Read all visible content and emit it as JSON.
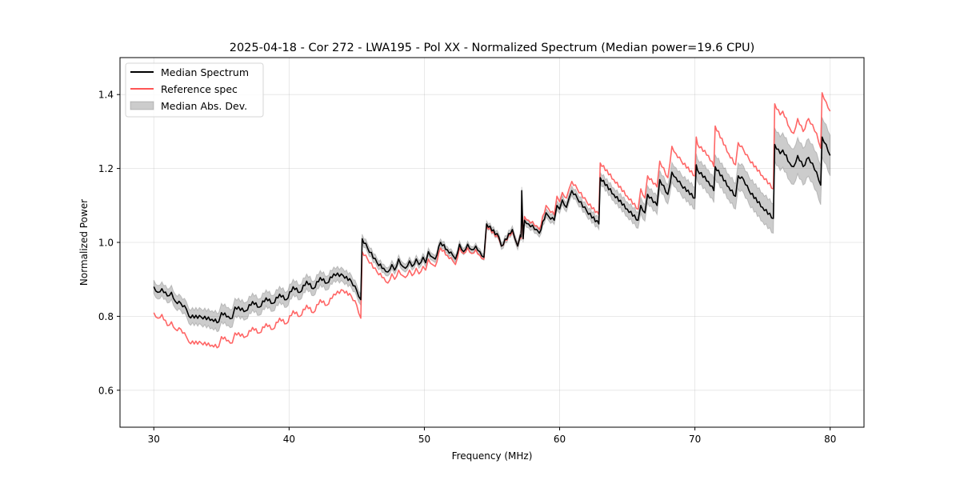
{
  "chart_data": {
    "type": "line",
    "title": "2025-04-18 - Cor 272 - LWA195 - Pol XX - Normalized Spectrum (Median power=19.6 CPU)",
    "xlabel": "Frequency (MHz)",
    "ylabel": "Normalized Power",
    "xlim": [
      27.5,
      82.5
    ],
    "ylim": [
      0.5,
      1.5
    ],
    "xticks": [
      30,
      40,
      50,
      60,
      70,
      80
    ],
    "xtick_labels": [
      "30",
      "40",
      "50",
      "60",
      "70",
      "80"
    ],
    "yticks": [
      0.6,
      0.8,
      1.0,
      1.2,
      1.4
    ],
    "ytick_labels": [
      "0.6",
      "0.8",
      "1.0",
      "1.2",
      "1.4"
    ],
    "grid": true,
    "legend_position": "top-left",
    "legend": [
      {
        "label": "Median Spectrum",
        "kind": "line",
        "color": "#000000"
      },
      {
        "label": "Reference spec",
        "kind": "line",
        "color": "#ff5555"
      },
      {
        "label": "Median Abs. Dev.",
        "kind": "band",
        "color": "#b0b0b0"
      }
    ],
    "series": [
      {
        "name": "Median Spectrum",
        "color": "#000000",
        "x": [
          30.0,
          30.3,
          30.6,
          31.0,
          31.3,
          31.6,
          32.0,
          32.4,
          32.6,
          33.5,
          34.3,
          34.8,
          35.0,
          35.5,
          35.8,
          36.0,
          36.8,
          37.3,
          37.8,
          38.3,
          38.8,
          39.3,
          39.8,
          40.3,
          40.8,
          41.3,
          41.8,
          42.3,
          42.8,
          43.3,
          44.0,
          44.6,
          45.0,
          45.3,
          45.4,
          45.8,
          46.5,
          47.0,
          47.3,
          47.6,
          47.8,
          48.1,
          48.4,
          48.6,
          48.9,
          49.1,
          49.4,
          49.6,
          49.9,
          50.1,
          50.3,
          50.6,
          50.8,
          51.2,
          51.7,
          52.1,
          52.3,
          52.6,
          52.9,
          53.2,
          53.5,
          53.8,
          54.1,
          54.4,
          54.6,
          55.5,
          55.7,
          56.5,
          56.7,
          56.9,
          57.1,
          57.15,
          57.2,
          57.3,
          57.4,
          57.7,
          58.3,
          58.5,
          59.0,
          59.2,
          59.6,
          59.8,
          60.0,
          60.2,
          60.5,
          60.7,
          60.9,
          61.3,
          62.0,
          62.9,
          63.0,
          64.0,
          65.0,
          65.8,
          66.0,
          66.3,
          66.5,
          67.2,
          67.4,
          68.0,
          68.3,
          68.6,
          69.0,
          70.0,
          70.1,
          70.2,
          71.0,
          71.4,
          71.5,
          72.5,
          73.0,
          73.2,
          73.6,
          74.0,
          75.0,
          75.8,
          75.9,
          76.3,
          76.5,
          77.0,
          77.3,
          77.6,
          78.0,
          78.4,
          79.0,
          79.3,
          79.4,
          79.7,
          80.0
        ],
        "values": [
          0.88,
          0.865,
          0.875,
          0.855,
          0.865,
          0.84,
          0.835,
          0.82,
          0.8,
          0.798,
          0.792,
          0.785,
          0.81,
          0.8,
          0.795,
          0.825,
          0.815,
          0.84,
          0.825,
          0.85,
          0.835,
          0.86,
          0.845,
          0.88,
          0.865,
          0.895,
          0.875,
          0.905,
          0.89,
          0.915,
          0.91,
          0.895,
          0.87,
          0.845,
          1.01,
          0.985,
          0.945,
          0.93,
          0.92,
          0.94,
          0.925,
          0.955,
          0.935,
          0.93,
          0.95,
          0.935,
          0.955,
          0.94,
          0.96,
          0.945,
          0.975,
          0.96,
          0.955,
          1.0,
          0.98,
          0.965,
          0.955,
          0.995,
          0.975,
          0.995,
          0.98,
          0.99,
          0.975,
          0.96,
          1.05,
          1.015,
          0.99,
          1.035,
          1.01,
          0.99,
          1.02,
          1.015,
          1.14,
          1.01,
          1.06,
          1.05,
          1.035,
          1.025,
          1.08,
          1.07,
          1.06,
          1.1,
          1.09,
          1.115,
          1.095,
          1.12,
          1.14,
          1.12,
          1.085,
          1.05,
          1.175,
          1.13,
          1.09,
          1.06,
          1.1,
          1.08,
          1.13,
          1.1,
          1.17,
          1.13,
          1.19,
          1.175,
          1.155,
          1.12,
          1.21,
          1.195,
          1.165,
          1.14,
          1.205,
          1.15,
          1.125,
          1.18,
          1.17,
          1.14,
          1.095,
          1.065,
          1.265,
          1.24,
          1.25,
          1.215,
          1.205,
          1.235,
          1.205,
          1.23,
          1.19,
          1.155,
          1.285,
          1.265,
          1.235
        ]
      },
      {
        "name": "Reference spec",
        "color": "#ff5555",
        "x": [
          30.0,
          30.3,
          30.6,
          31.0,
          31.3,
          31.6,
          32.0,
          32.4,
          32.6,
          33.5,
          34.3,
          34.8,
          35.0,
          35.5,
          35.8,
          36.0,
          36.8,
          37.3,
          37.8,
          38.3,
          38.8,
          39.3,
          39.8,
          40.3,
          40.8,
          41.3,
          41.8,
          42.3,
          42.8,
          43.3,
          44.0,
          44.6,
          45.0,
          45.3,
          45.4,
          45.8,
          46.5,
          47.0,
          47.3,
          47.6,
          47.8,
          48.1,
          48.4,
          48.6,
          48.9,
          49.1,
          49.4,
          49.6,
          49.9,
          50.1,
          50.3,
          50.6,
          50.8,
          51.2,
          51.7,
          52.1,
          52.3,
          52.6,
          52.9,
          53.2,
          53.5,
          53.8,
          54.1,
          54.4,
          54.6,
          55.5,
          55.7,
          56.5,
          56.7,
          56.9,
          57.1,
          57.15,
          57.2,
          57.3,
          57.4,
          57.7,
          58.3,
          58.5,
          59.0,
          59.2,
          59.6,
          59.8,
          60.0,
          60.2,
          60.5,
          60.7,
          60.9,
          61.3,
          62.0,
          62.9,
          63.0,
          64.0,
          65.0,
          65.8,
          66.0,
          66.3,
          66.5,
          67.2,
          67.4,
          68.0,
          68.3,
          68.6,
          69.0,
          70.0,
          70.1,
          70.2,
          71.0,
          71.4,
          71.5,
          72.5,
          73.0,
          73.2,
          73.6,
          74.0,
          75.0,
          75.8,
          75.9,
          76.3,
          76.5,
          77.0,
          77.3,
          77.6,
          78.0,
          78.4,
          79.0,
          79.3,
          79.4,
          79.7,
          80.0
        ],
        "values": [
          0.81,
          0.795,
          0.805,
          0.775,
          0.785,
          0.765,
          0.765,
          0.745,
          0.73,
          0.728,
          0.722,
          0.718,
          0.745,
          0.735,
          0.728,
          0.755,
          0.745,
          0.77,
          0.755,
          0.78,
          0.765,
          0.795,
          0.78,
          0.815,
          0.8,
          0.83,
          0.81,
          0.845,
          0.83,
          0.86,
          0.87,
          0.855,
          0.83,
          0.795,
          0.975,
          0.955,
          0.92,
          0.905,
          0.89,
          0.915,
          0.9,
          0.925,
          0.91,
          0.905,
          0.925,
          0.91,
          0.93,
          0.915,
          0.935,
          0.925,
          0.955,
          0.94,
          0.935,
          0.985,
          0.965,
          0.95,
          0.94,
          0.985,
          0.97,
          0.985,
          0.97,
          0.98,
          0.965,
          0.955,
          1.045,
          1.01,
          0.99,
          1.03,
          1.01,
          0.99,
          1.02,
          1.01,
          1.1,
          1.01,
          1.07,
          1.06,
          1.045,
          1.035,
          1.1,
          1.09,
          1.075,
          1.125,
          1.11,
          1.135,
          1.12,
          1.145,
          1.165,
          1.145,
          1.11,
          1.075,
          1.215,
          1.17,
          1.125,
          1.09,
          1.145,
          1.12,
          1.18,
          1.15,
          1.22,
          1.175,
          1.26,
          1.24,
          1.22,
          1.18,
          1.285,
          1.265,
          1.235,
          1.205,
          1.315,
          1.24,
          1.21,
          1.27,
          1.25,
          1.225,
          1.18,
          1.145,
          1.375,
          1.345,
          1.355,
          1.31,
          1.295,
          1.335,
          1.3,
          1.335,
          1.295,
          1.255,
          1.405,
          1.38,
          1.355
        ]
      }
    ],
    "band": {
      "name": "Median Abs. Dev.",
      "color": "#b0b0b0",
      "x": [
        30.0,
        32.6,
        35.0,
        38.0,
        41.0,
        44.0,
        45.3,
        45.4,
        50.0,
        54.0,
        57.0,
        60.0,
        63.0,
        65.8,
        66.0,
        70.0,
        73.0,
        75.8,
        75.9,
        78.0,
        80.0
      ],
      "half_width": [
        0.018,
        0.02,
        0.025,
        0.022,
        0.02,
        0.018,
        0.015,
        0.012,
        0.01,
        0.008,
        0.01,
        0.012,
        0.015,
        0.022,
        0.022,
        0.03,
        0.035,
        0.04,
        0.045,
        0.05,
        0.055
      ]
    }
  }
}
